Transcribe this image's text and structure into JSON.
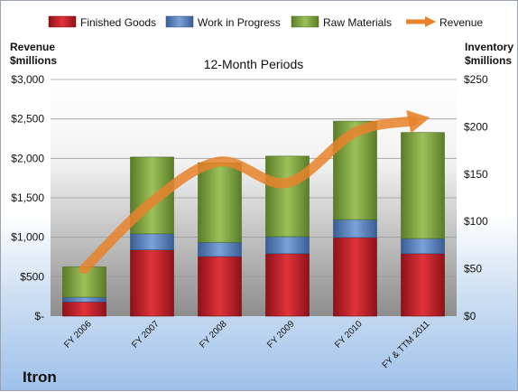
{
  "chart_data": {
    "type": "bar",
    "stacked": true,
    "subtitle": "12-Month Periods",
    "company": "Itron",
    "categories": [
      "FY 2006",
      "FY 2007",
      "FY 2008",
      "FY 2009",
      "FY 2010",
      "FY & TTM 2011"
    ],
    "series": [
      {
        "name": "Finished Goods",
        "axis": "right",
        "color": "#c0202a",
        "values": [
          15,
          70,
          63,
          66,
          83,
          66
        ]
      },
      {
        "name": "Work in Progress",
        "axis": "right",
        "color": "#4f7fc4",
        "values": [
          5,
          17,
          15,
          18,
          19,
          16
        ]
      },
      {
        "name": "Raw Materials",
        "axis": "right",
        "color": "#7fa63c",
        "values": [
          32,
          81,
          84,
          85,
          104,
          112
        ]
      }
    ],
    "line_series": {
      "name": "Revenue",
      "axis": "left",
      "color": "#e8822c",
      "values": [
        600,
        1450,
        1960,
        1690,
        2330,
        2500
      ]
    },
    "y_left": {
      "label_line1": "Revenue",
      "label_line2": "$millions",
      "range": [
        0,
        3000
      ],
      "ticks": [
        "$-",
        "$500",
        "$1,000",
        "$1,500",
        "$2,000",
        "$2,500",
        "$3,000"
      ]
    },
    "y_right": {
      "label_line1": "Inventory",
      "label_line2": "$millions",
      "range": [
        0,
        250
      ],
      "ticks": [
        "$0",
        "$50",
        "$100",
        "$150",
        "$200",
        "$250"
      ]
    },
    "legend_placement": "top",
    "grid": true
  }
}
